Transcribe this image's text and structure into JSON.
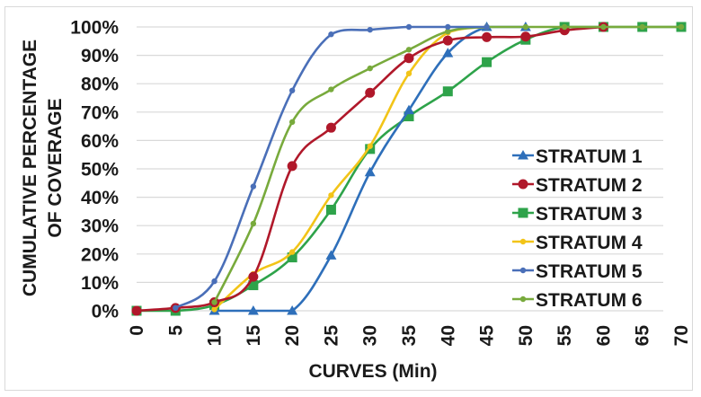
{
  "chart_data": {
    "type": "line",
    "title": "",
    "xlabel": "CURVES (Min)",
    "ylabel_lines": [
      "CUMULATIVE PERCENTAGE",
      "OF COVERAGE"
    ],
    "xlim": [
      0,
      70
    ],
    "ylim": [
      0,
      100
    ],
    "x_ticks": [
      "0",
      "5",
      "10",
      "15",
      "20",
      "25",
      "30",
      "35",
      "40",
      "45",
      "50",
      "55",
      "60",
      "65",
      "70"
    ],
    "x_tick_values": [
      0,
      5,
      10,
      15,
      20,
      25,
      30,
      35,
      40,
      45,
      50,
      55,
      60,
      65,
      70
    ],
    "y_ticks": [
      "0%",
      "10%",
      "20%",
      "30%",
      "40%",
      "50%",
      "60%",
      "70%",
      "80%",
      "90%",
      "100%"
    ],
    "y_tick_values": [
      0,
      10,
      20,
      30,
      40,
      50,
      60,
      70,
      80,
      90,
      100
    ],
    "grid": "horizontal",
    "legend_position": "right",
    "series": [
      {
        "name": "STRATUM 1",
        "color": "#2e6fba",
        "marker": "triangle",
        "x": [
          10,
          15,
          20,
          25,
          30,
          35,
          40,
          45,
          50
        ],
        "values": [
          0,
          0,
          0,
          19.5,
          48.8,
          70.7,
          90.8,
          100,
          100
        ]
      },
      {
        "name": "STRATUM 2",
        "color": "#b0182a",
        "marker": "circle-large",
        "x": [
          0,
          5,
          10,
          15,
          20,
          25,
          30,
          35,
          40,
          45,
          50,
          55,
          60
        ],
        "values": [
          0,
          1,
          3,
          12,
          51,
          64.5,
          76.8,
          89,
          95.2,
          96.4,
          96.6,
          98.8,
          100
        ]
      },
      {
        "name": "STRATUM 3",
        "color": "#2ea34a",
        "marker": "square",
        "x": [
          0,
          5,
          10,
          15,
          20,
          25,
          30,
          35,
          40,
          45,
          50,
          55,
          60,
          65,
          70
        ],
        "values": [
          0,
          0,
          2,
          9,
          18.8,
          35.6,
          57,
          68.5,
          77.3,
          87.6,
          95.5,
          100,
          100,
          100,
          100
        ]
      },
      {
        "name": "STRATUM 4",
        "color": "#f2c418",
        "marker": "circle-small",
        "x": [
          10,
          15,
          20,
          25,
          30,
          35,
          40,
          45
        ],
        "values": [
          0.5,
          13,
          20.7,
          40.7,
          58,
          83.6,
          98,
          100
        ]
      },
      {
        "name": "STRATUM 5",
        "color": "#4a6fb8",
        "marker": "circle-small",
        "x": [
          5,
          10,
          15,
          20,
          25,
          30,
          35,
          40,
          45
        ],
        "values": [
          1,
          10.4,
          43.8,
          77.6,
          97.4,
          99,
          100,
          100,
          100
        ]
      },
      {
        "name": "STRATUM 6",
        "color": "#78aa3c",
        "marker": "circle-small",
        "x": [
          10,
          15,
          20,
          25,
          30,
          35,
          40,
          45,
          50,
          55,
          60,
          65,
          70
        ],
        "values": [
          3,
          30.7,
          66.5,
          78,
          85.4,
          92,
          98.4,
          100,
          100,
          100,
          100,
          100,
          100
        ]
      }
    ]
  }
}
